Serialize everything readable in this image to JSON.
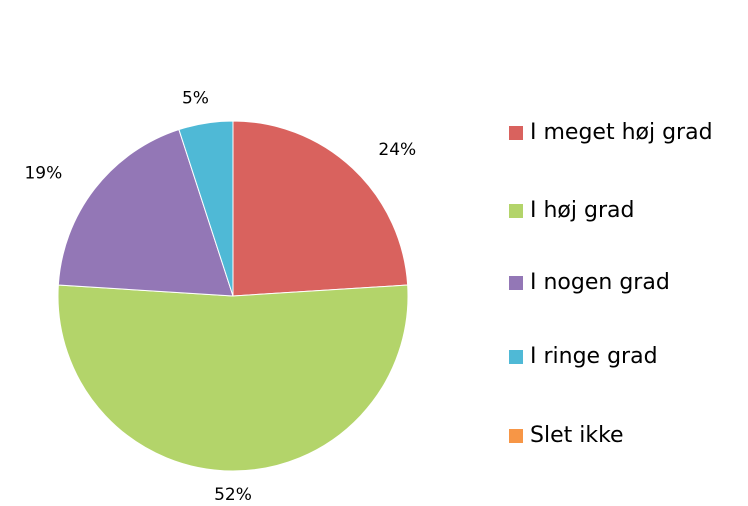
{
  "chart_data": {
    "type": "pie",
    "categories": [
      "I meget høj grad",
      "I høj grad",
      "I nogen grad",
      "I ringe grad",
      "Slet ikke"
    ],
    "values": [
      24,
      52,
      19,
      5,
      0
    ],
    "value_labels": [
      "24%",
      "52%",
      "19%",
      "5%",
      null
    ],
    "colors": [
      "#d9625e",
      "#b3d46a",
      "#9377b6",
      "#4fb9d6",
      "#f79646"
    ],
    "legend": "right"
  }
}
